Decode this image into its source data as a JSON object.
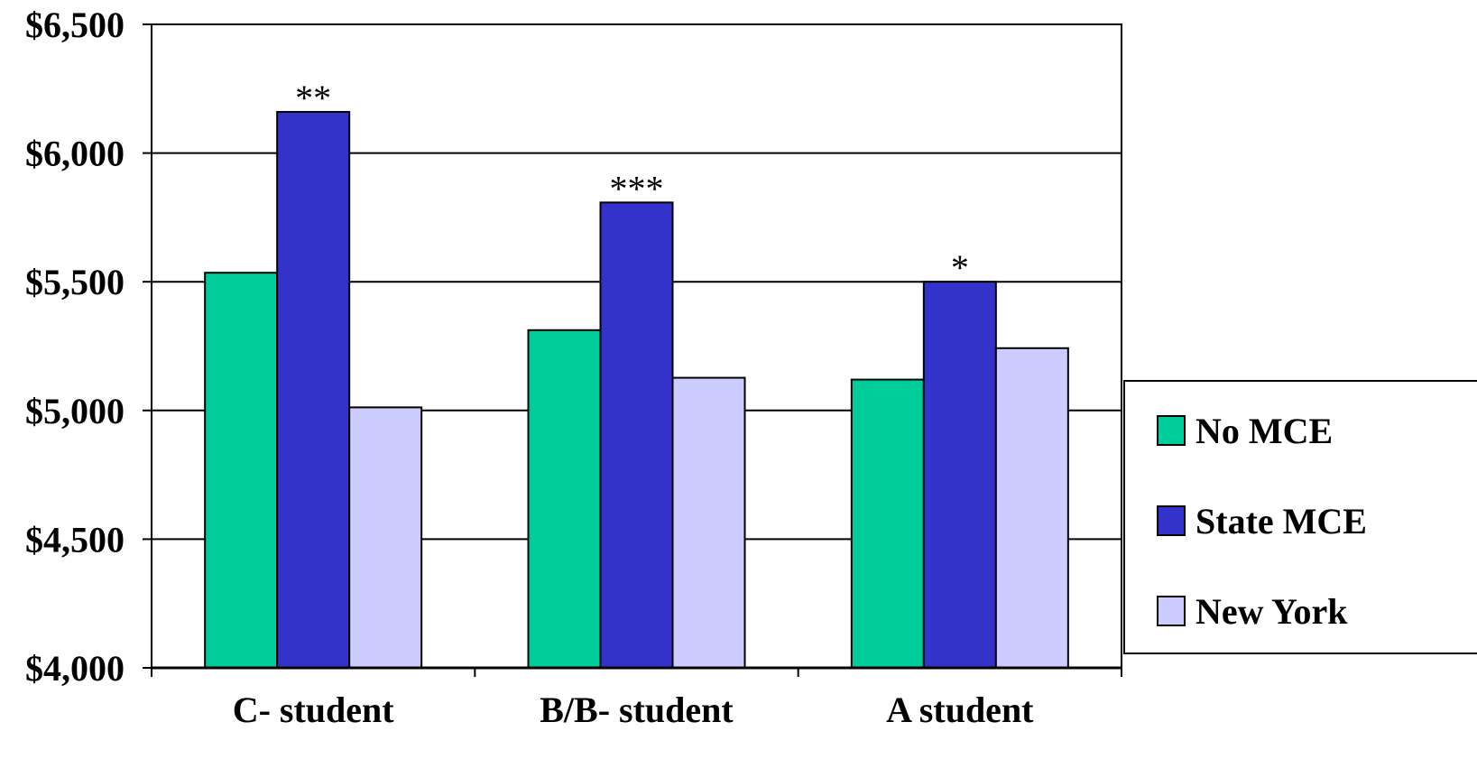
{
  "chart_data": {
    "type": "bar",
    "categories": [
      "C- student",
      "B/B- student",
      "A student"
    ],
    "series": [
      {
        "name": "No MCE",
        "color": "#00CC99",
        "values": [
          5535,
          5312,
          5120
        ]
      },
      {
        "name": "State MCE",
        "color": "#3333CC",
        "values": [
          6160,
          5808,
          5500
        ]
      },
      {
        "name": "New York",
        "color": "#CCCCFF",
        "values": [
          5012,
          5127,
          5242
        ]
      }
    ],
    "significance": [
      {
        "category": 0,
        "series": 1,
        "label": "**"
      },
      {
        "category": 1,
        "series": 1,
        "label": "***"
      },
      {
        "category": 2,
        "series": 1,
        "label": "*"
      }
    ],
    "yticks": [
      "$4,000",
      "$4,500",
      "$5,000",
      "$5,500",
      "$6,000",
      "$6,500"
    ],
    "ytick_values": [
      4000,
      4500,
      5000,
      5500,
      6000,
      6500
    ],
    "ylim": [
      4000,
      6500
    ],
    "title": "",
    "xlabel": "",
    "ylabel": "",
    "grid": true,
    "legend_position": "right"
  }
}
